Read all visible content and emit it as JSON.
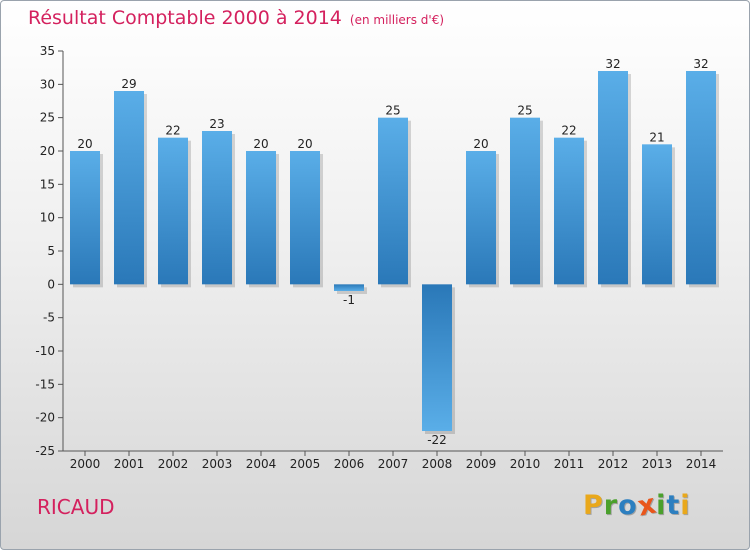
{
  "header": {
    "title": "Résultat Comptable 2000 à 2014",
    "subtitle": "(en milliers d'€)"
  },
  "footer": {
    "place": "RICAUD",
    "logo_letters": [
      "P",
      "r",
      "o",
      "x",
      "i",
      "t",
      "i"
    ]
  },
  "colors": {
    "title": "#d4215e",
    "bar_dark": "#2a78b8",
    "bar_light": "#5aaee8",
    "logo": [
      "#e9a81b",
      "#4aa02c",
      "#2c7fc0",
      "#e9561b",
      "#4aa02c",
      "#2c7fc0",
      "#e9a81b"
    ]
  },
  "chart_data": {
    "type": "bar",
    "title": "Résultat Comptable 2000 à 2014",
    "subtitle": "(en milliers d'€)",
    "xlabel": "",
    "ylabel": "",
    "categories": [
      "2000",
      "2001",
      "2002",
      "2003",
      "2004",
      "2005",
      "2006",
      "2007",
      "2008",
      "2009",
      "2010",
      "2011",
      "2012",
      "2013",
      "2014"
    ],
    "values": [
      20,
      29,
      22,
      23,
      20,
      20,
      -1,
      25,
      -22,
      20,
      25,
      22,
      32,
      21,
      32
    ],
    "ylim": [
      -25,
      35
    ],
    "yticks": [
      35,
      30,
      25,
      20,
      15,
      10,
      5,
      0,
      -5,
      -10,
      -15,
      -20,
      -25
    ],
    "grid": false,
    "legend": "none"
  }
}
